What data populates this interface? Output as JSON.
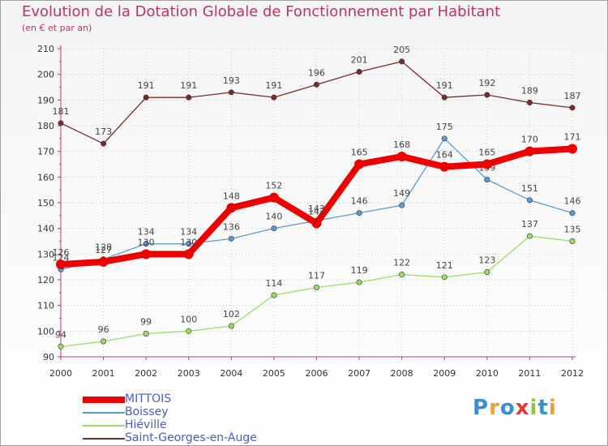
{
  "chart_data": {
    "type": "line",
    "title": "Evolution de la Dotation Globale de Fonctionnement par Habitant",
    "subtitle": "(en € et par an)",
    "xlabel": "",
    "ylabel": "",
    "ylim": [
      90,
      210
    ],
    "yticks": [
      90,
      100,
      110,
      120,
      130,
      140,
      150,
      160,
      170,
      180,
      190,
      200,
      210
    ],
    "categories": [
      "2000",
      "2001",
      "2002",
      "2003",
      "2004",
      "2005",
      "2006",
      "2007",
      "2008",
      "2009",
      "2010",
      "2011",
      "2012"
    ],
    "grid": true,
    "legend_position": "bottom-left",
    "series": [
      {
        "name": "MITTOIS",
        "color": "#ee0000",
        "values": [
          126,
          127,
          130,
          130,
          148,
          152,
          142,
          165,
          168,
          164,
          165,
          170,
          171
        ]
      },
      {
        "name": "Boissey",
        "color": "#5b9bd5",
        "values": [
          124,
          128,
          134,
          134,
          136,
          140,
          143,
          146,
          149,
          175,
          159,
          151,
          146
        ]
      },
      {
        "name": "Hiéville",
        "color": "#99dd66",
        "values": [
          94,
          96,
          99,
          100,
          102,
          114,
          117,
          119,
          122,
          121,
          123,
          137,
          135
        ]
      },
      {
        "name": "Saint-Georges-en-Auge",
        "color": "#7a2a2a",
        "values": [
          181,
          173,
          191,
          191,
          193,
          191,
          196,
          201,
          205,
          191,
          192,
          189,
          187
        ]
      }
    ]
  },
  "logo": {
    "letters": [
      {
        "char": "P",
        "color": "#3a8fd0"
      },
      {
        "char": "r",
        "color": "#f0a030"
      },
      {
        "char": "o",
        "color": "#3a8fd0"
      },
      {
        "char": "x",
        "color": "#e23a3a"
      },
      {
        "char": "i",
        "color": "#8cc63f"
      },
      {
        "char": "t",
        "color": "#3a8fd0"
      },
      {
        "char": "i",
        "color": "#f0a030"
      }
    ]
  }
}
